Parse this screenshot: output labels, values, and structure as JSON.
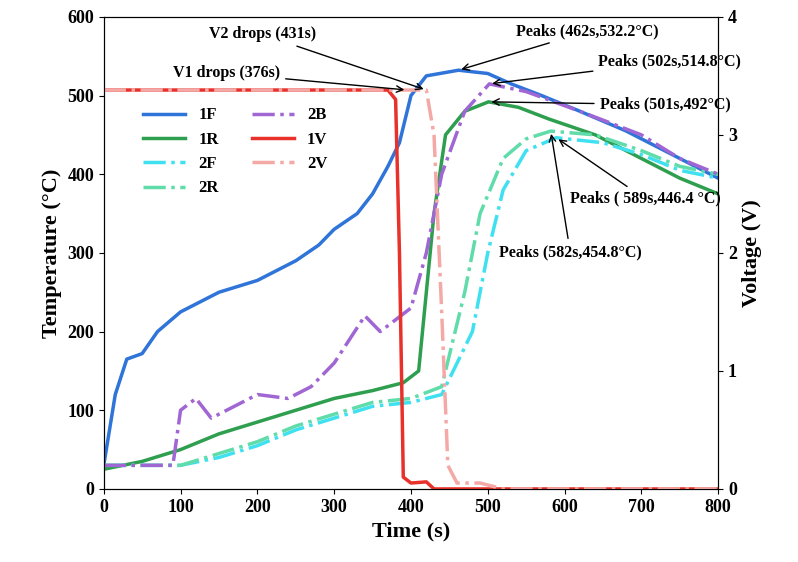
{
  "chart_data": {
    "type": "line",
    "xlabel": "Time (s)",
    "ylabel": "Temperature (°C)",
    "y2label": "Voltage (V)",
    "xlim": [
      0,
      800
    ],
    "xticks": [
      0,
      100,
      200,
      300,
      400,
      500,
      600,
      700,
      800
    ],
    "ylim": [
      0,
      600
    ],
    "yticks": [
      0,
      100,
      200,
      300,
      400,
      500,
      600
    ],
    "y2lim": [
      0,
      4
    ],
    "y2ticks": [
      0,
      1,
      2,
      3,
      4
    ],
    "legend": "upper left",
    "grid": false,
    "series": [
      {
        "name": "1F",
        "color": "#2f74d8",
        "line_style": "solid",
        "x": [
          0,
          15,
          30,
          50,
          70,
          100,
          150,
          200,
          220,
          250,
          280,
          300,
          330,
          350,
          370,
          385,
          400,
          420,
          462,
          500,
          530,
          570,
          620,
          680,
          740,
          800
        ],
        "values": [
          30,
          120,
          165,
          172,
          200,
          225,
          250,
          265,
          275,
          290,
          310,
          330,
          350,
          375,
          410,
          440,
          500,
          525,
          532.2,
          528,
          515,
          500,
          480,
          455,
          425,
          395
        ]
      },
      {
        "name": "1R",
        "color": "#2e9e4f",
        "line_style": "solid",
        "x": [
          0,
          50,
          100,
          150,
          200,
          250,
          300,
          350,
          390,
          410,
          420,
          430,
          445,
          470,
          501,
          540,
          580,
          640,
          700,
          750,
          800
        ],
        "values": [
          25,
          35,
          50,
          70,
          85,
          100,
          115,
          125,
          135,
          150,
          250,
          350,
          450,
          480,
          492,
          485,
          470,
          450,
          420,
          395,
          375
        ]
      },
      {
        "name": "2F",
        "color": "#3fe0f0",
        "line_style": "dashdot",
        "x": [
          0,
          100,
          150,
          200,
          250,
          300,
          350,
          400,
          440,
          480,
          500,
          520,
          550,
          589,
          650,
          700,
          750,
          800
        ],
        "values": [
          30,
          30,
          40,
          55,
          75,
          90,
          105,
          110,
          120,
          200,
          300,
          380,
          430,
          446.4,
          440,
          425,
          405,
          395
        ]
      },
      {
        "name": "2R",
        "color": "#5fdcaa",
        "line_style": "dashdot",
        "x": [
          0,
          100,
          150,
          200,
          250,
          300,
          350,
          400,
          440,
          470,
          490,
          520,
          550,
          582,
          640,
          700,
          750,
          800
        ],
        "values": [
          30,
          30,
          45,
          60,
          80,
          95,
          110,
          115,
          130,
          250,
          350,
          420,
          445,
          454.8,
          450,
          430,
          410,
          400
        ]
      },
      {
        "name": "2B",
        "color": "#a066d3",
        "line_style": "dashdot",
        "x": [
          0,
          90,
          100,
          120,
          140,
          180,
          200,
          240,
          270,
          300,
          340,
          360,
          380,
          400,
          420,
          440,
          470,
          502,
          550,
          620,
          700,
          750,
          800
        ],
        "values": [
          30,
          30,
          100,
          115,
          90,
          110,
          120,
          115,
          130,
          160,
          220,
          200,
          215,
          230,
          300,
          400,
          480,
          514.8,
          505,
          480,
          450,
          420,
          400
        ]
      },
      {
        "name": "1V",
        "color": "#e8312a",
        "line_style": "solid",
        "axis": "y2",
        "x": [
          0,
          370,
          380,
          385,
          390,
          400,
          420,
          430,
          800
        ],
        "values": [
          3.38,
          3.38,
          3.3,
          2.0,
          0.1,
          0.05,
          0.06,
          0.0,
          0.0
        ]
      },
      {
        "name": "2V",
        "color": "#f4a9a6",
        "line_style": "dashdot",
        "axis": "y2",
        "x": [
          0,
          420,
          430,
          440,
          448,
          460,
          490,
          520,
          800
        ],
        "values": [
          3.38,
          3.38,
          3.0,
          1.5,
          0.2,
          0.05,
          0.05,
          0.0,
          0.0
        ]
      }
    ],
    "annotations": [
      {
        "text": "V1 drops (376s)",
        "x": 395,
        "y": 3.38,
        "axis": "y2"
      },
      {
        "text": "V2 drops (431s)",
        "x": 420,
        "y": 3.38,
        "axis": "y2"
      },
      {
        "text": "Peaks (462s,532.2°C)",
        "x": 462,
        "y": 532.2
      },
      {
        "text": "Peaks (502s,514.8°C)",
        "x": 502,
        "y": 514.8
      },
      {
        "text": "Peaks (501s,492°C)",
        "x": 501,
        "y": 492
      },
      {
        "text": "Peaks ( 589s,446.4 °C)",
        "x": 589,
        "y": 446.4
      },
      {
        "text": "Peaks (582s,454.8°C)",
        "x": 582,
        "y": 454.8
      }
    ]
  }
}
